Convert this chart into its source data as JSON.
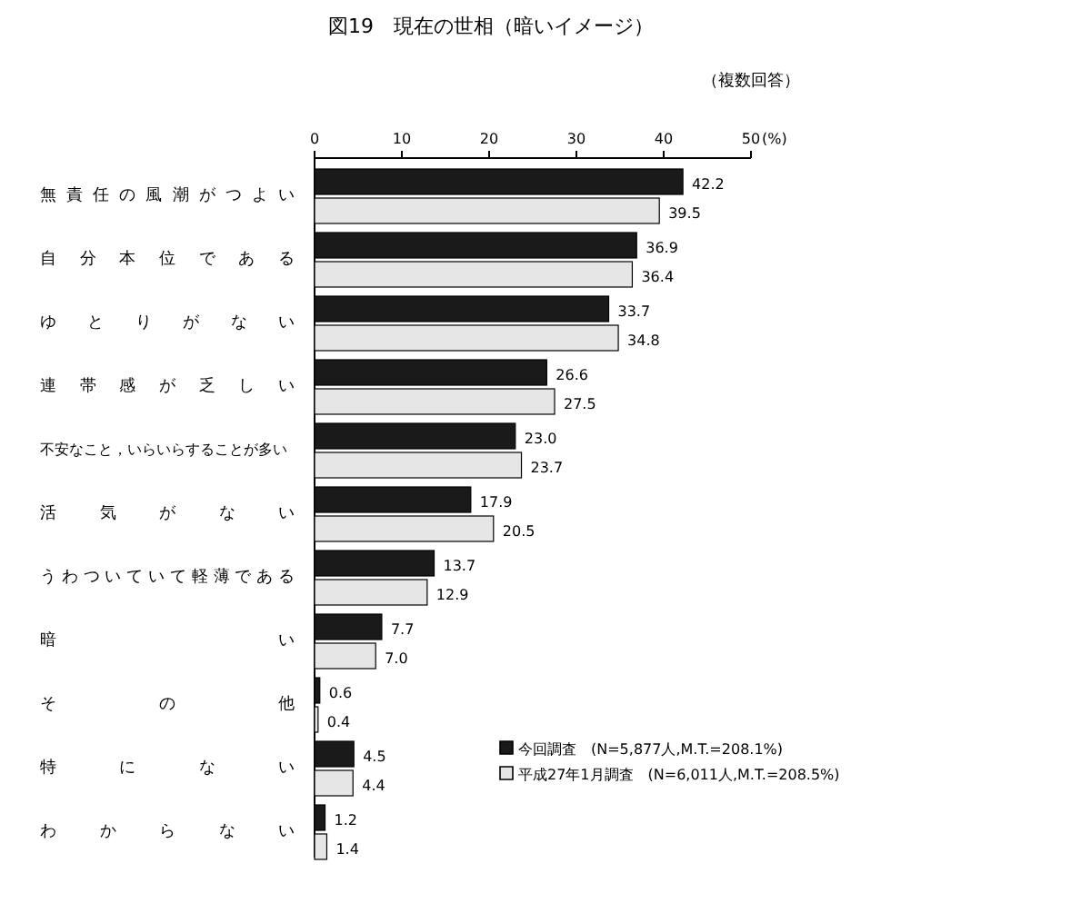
{
  "chart_data": {
    "type": "bar",
    "orientation": "horizontal",
    "title": "図19　現在の世相（暗いイメージ）",
    "subtitle": "（複数回答）",
    "xlabel": "(%)",
    "categories": [
      "無責任の風潮がつよい",
      "自分本位である",
      "ゆとりがない",
      "連帯感が乏しい",
      "不安なこと，いらいらすることが多い",
      "活気がない",
      "うわついていて軽薄である",
      "暗い",
      "その他",
      "特にない",
      "わからない"
    ],
    "series": [
      {
        "name": "今回調査　(N=5,877人,M.T.=208.1%)",
        "color": "#1a1a1a",
        "values": [
          42.2,
          36.9,
          33.7,
          26.6,
          23.0,
          17.9,
          13.7,
          7.7,
          0.6,
          4.5,
          1.2
        ],
        "value_labels": [
          "42.2",
          "36.9",
          "33.7",
          "26.6",
          "23.0",
          "17.9",
          "13.7",
          "7.7",
          "0.6",
          "4.5",
          "1.2"
        ]
      },
      {
        "name": "平成27年1月調査　(N=6,011人,M.T.=208.5%)",
        "color": "#e6e6e6",
        "values": [
          39.5,
          36.4,
          34.8,
          27.5,
          23.7,
          20.5,
          12.9,
          7.0,
          0.4,
          4.4,
          1.4
        ],
        "value_labels": [
          "39.5",
          "36.4",
          "34.8",
          "27.5",
          "23.7",
          "20.5",
          "12.9",
          "7.0",
          "0.4",
          "4.4",
          "1.4"
        ]
      }
    ],
    "xlim": [
      0,
      50
    ],
    "xticks": [
      0,
      10,
      20,
      30,
      40,
      50
    ],
    "legend": "bottom right",
    "grid": false
  }
}
